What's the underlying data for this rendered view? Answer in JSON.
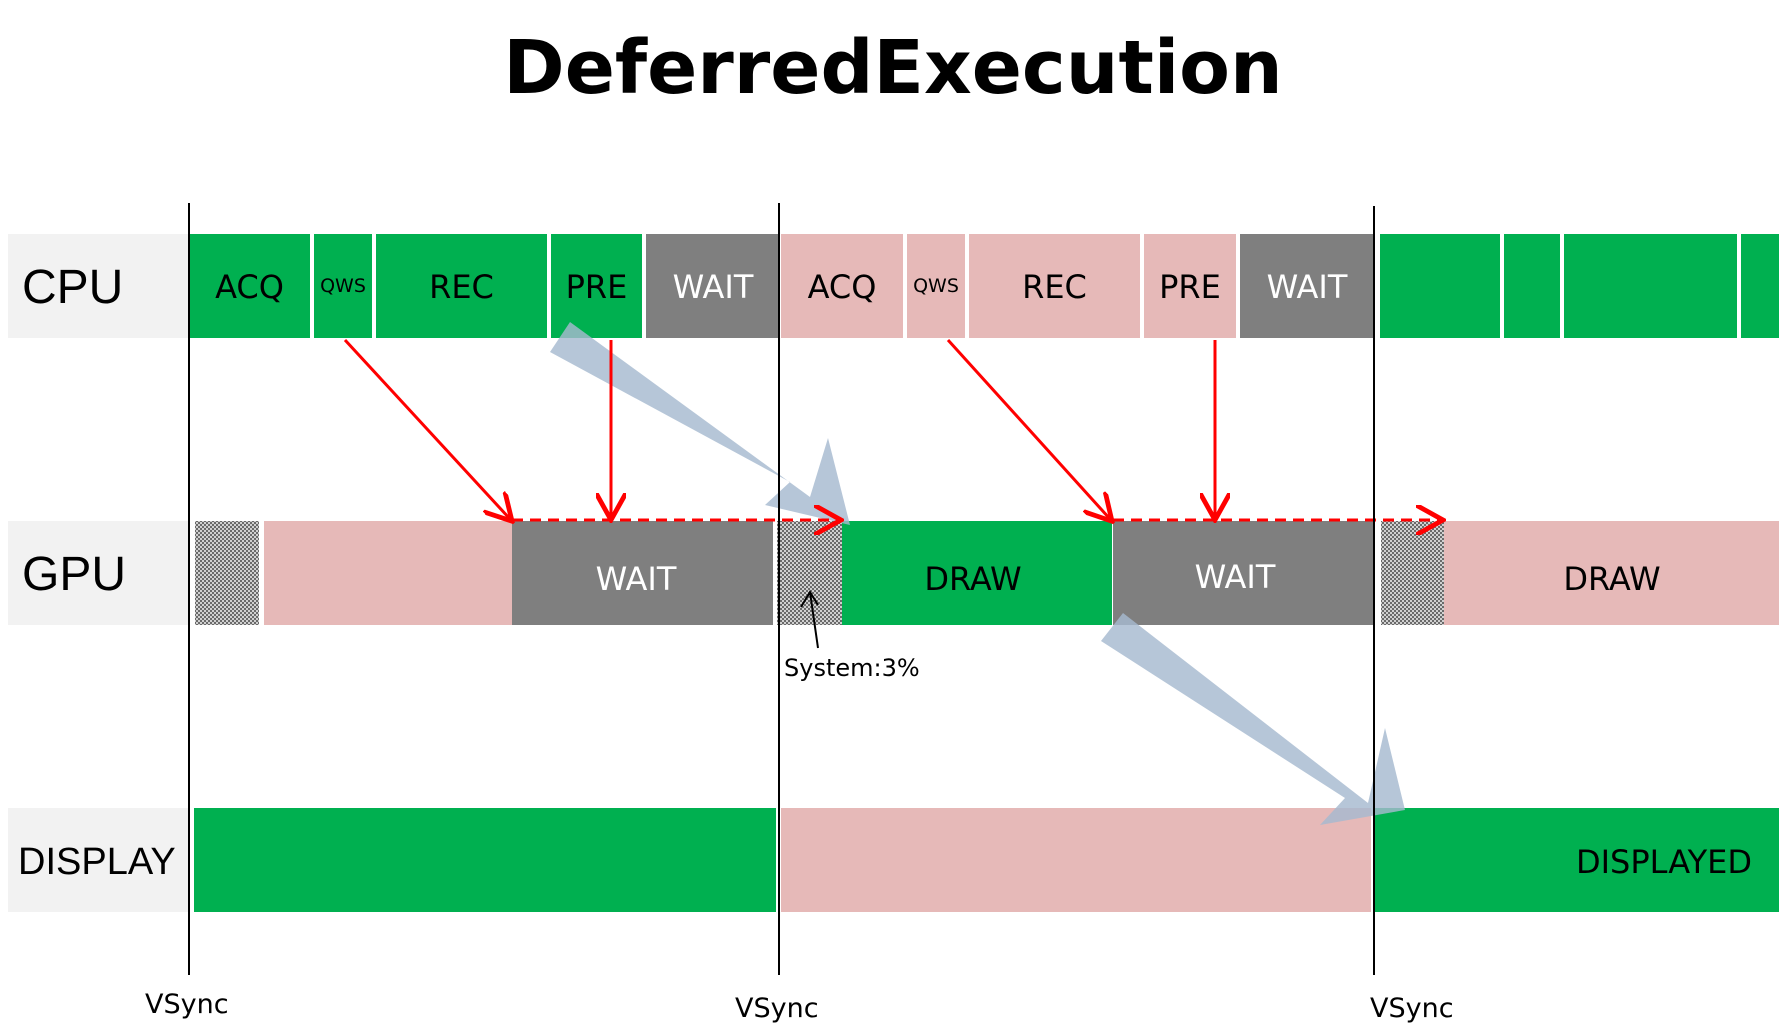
{
  "title": "DeferredExecution",
  "colors": {
    "green": "#00b050",
    "pink": "#e6b9b8",
    "gray": "#7f7f7f",
    "label_bg": "#f2f2f2",
    "red": "#ff0000",
    "flow_arrow": "#a6b9d0",
    "white_text": "#ffffff",
    "black_text": "#000000"
  },
  "rows": {
    "cpu": {
      "label": "CPU"
    },
    "gpu": {
      "label": "GPU"
    },
    "display": {
      "label": "DISPLAY"
    }
  },
  "cpu_segments": [
    {
      "label": "ACQ",
      "color": "green"
    },
    {
      "label": "QWS",
      "color": "green"
    },
    {
      "label": "REC",
      "color": "green"
    },
    {
      "label": "PRE",
      "color": "green"
    },
    {
      "label": "WAIT",
      "color": "gray"
    },
    {
      "label": "ACQ",
      "color": "pink"
    },
    {
      "label": "QWS",
      "color": "pink"
    },
    {
      "label": "REC",
      "color": "pink"
    },
    {
      "label": "PRE",
      "color": "pink"
    },
    {
      "label": "WAIT",
      "color": "gray"
    },
    {
      "label": "",
      "color": "green"
    },
    {
      "label": "",
      "color": "green"
    },
    {
      "label": "",
      "color": "green"
    },
    {
      "label": "",
      "color": "green"
    }
  ],
  "gpu_segments": [
    {
      "label": "",
      "color": "hatch"
    },
    {
      "label": "",
      "color": "pink"
    },
    {
      "label": "WAIT",
      "color": "gray"
    },
    {
      "label": "",
      "color": "hatch"
    },
    {
      "label": "DRAW",
      "color": "green"
    },
    {
      "label": "WAIT",
      "color": "gray"
    },
    {
      "label": "",
      "color": "hatch"
    },
    {
      "label": "DRAW",
      "color": "pink"
    }
  ],
  "display_segments": [
    {
      "label": "",
      "color": "green"
    },
    {
      "label": "",
      "color": "pink"
    },
    {
      "label": "DISPLAYED",
      "color": "green"
    }
  ],
  "vsync_label": "VSync",
  "annotation": "System:3%"
}
